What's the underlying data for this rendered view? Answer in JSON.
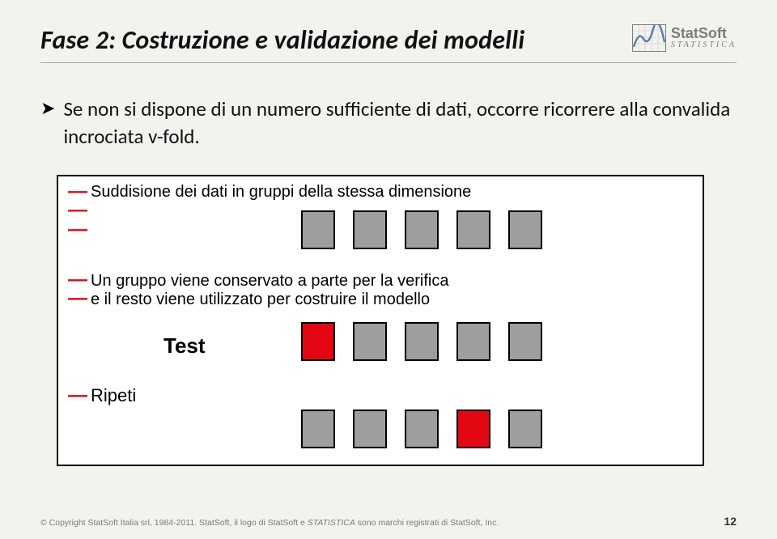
{
  "title": "Fase 2: Costruzione e validazione dei modelli",
  "logo": {
    "brand": "StatSoft",
    "sub": "STATISTICA"
  },
  "bullet": "Se non si dispone di un numero sufficiente di dati, occorre ricorrere alla convalida incrociata v-fold.",
  "diagram": {
    "line1": "Suddisione dei dati in gruppi della stessa dimensione",
    "line2": "Un gruppo viene conservato a parte per la verifica",
    "line3": "e il resto viene utilizzato per costruire il modello",
    "test_label": "Test",
    "repeat_label": "Ripeti",
    "row1": {
      "count": 5,
      "highlighted": [],
      "colors": {
        "default": "#9e9e9e",
        "highlight": "#e30613"
      }
    },
    "row2": {
      "count": 5,
      "highlighted": [
        0
      ],
      "colors": {
        "default": "#9e9e9e",
        "highlight": "#e30613"
      }
    },
    "row3": {
      "count": 5,
      "highlighted": [
        3
      ],
      "colors": {
        "default": "#9e9e9e",
        "highlight": "#e30613"
      }
    },
    "box_size": {
      "w": 42,
      "h": 48
    },
    "border_color": "#000000",
    "background": "#ffffff",
    "dash_color": "#e30613"
  },
  "footer": {
    "text_prefix": "© Copyright StatSoft Italia srl, 1984-2011. StatSoft, il logo di StatSoft e ",
    "text_em": "STATISTICA",
    "text_suffix": " sono marchi registrati di StatSoft, Inc.",
    "page": "12"
  }
}
